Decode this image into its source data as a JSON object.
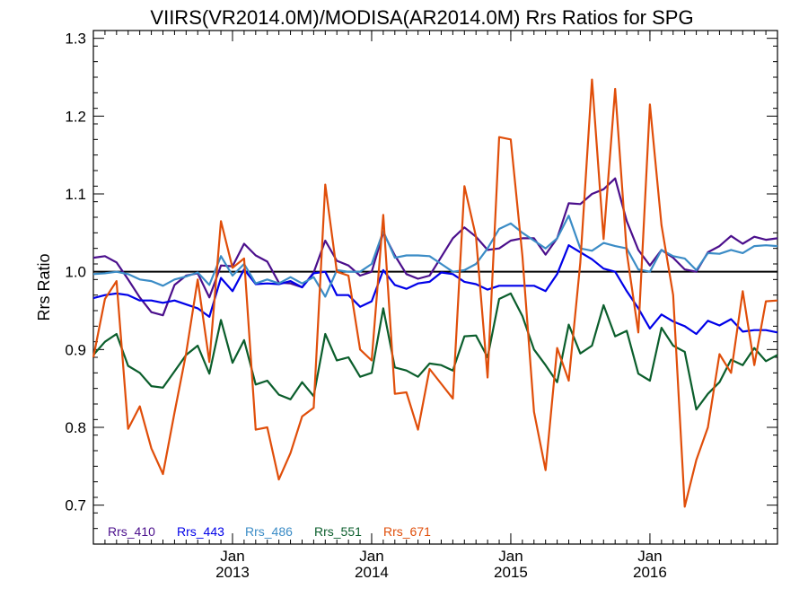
{
  "chart_data": {
    "type": "line",
    "title": "VIIRS(VR2014.0M)/MODISA(AR2014.0M)  Rrs Ratios for SPG",
    "xlabel": "",
    "ylabel": "Rrs Ratio",
    "x_start": "2012-01",
    "x_step": "1 month",
    "xlim": [
      "2012-01",
      "2016-12"
    ],
    "ylim": [
      0.65,
      1.31
    ],
    "y_ticks": [
      0.7,
      0.8,
      0.9,
      1.0,
      1.1,
      1.2,
      1.3
    ],
    "y_tick_labels": [
      "0.7",
      "0.8",
      "0.9",
      "1.0",
      "1.1",
      "1.2",
      "1.3"
    ],
    "x_ticks": [
      {
        "x": "2013-01",
        "month": "Jan",
        "year": "2013"
      },
      {
        "x": "2014-01",
        "month": "Jan",
        "year": "2014"
      },
      {
        "x": "2015-01",
        "month": "Jan",
        "year": "2015"
      },
      {
        "x": "2016-01",
        "month": "Jan",
        "year": "2016"
      }
    ],
    "reference_line": 1.0,
    "grid": false,
    "legend_placement": "bottom-left",
    "series": [
      {
        "name": "Rrs_410",
        "color": "#4b0f8c",
        "values": [
          1.018,
          1.02,
          1.012,
          0.99,
          0.967,
          0.948,
          0.944,
          0.983,
          0.995,
          0.998,
          0.967,
          1.008,
          1.007,
          1.036,
          1.021,
          1.013,
          0.986,
          0.985,
          0.98,
          0.999,
          1.04,
          1.014,
          1.008,
          0.995,
          1.0,
          1.05,
          1.021,
          0.997,
          0.991,
          0.995,
          1.019,
          1.043,
          1.057,
          1.045,
          1.028,
          1.03,
          1.04,
          1.043,
          1.043,
          1.022,
          1.043,
          1.088,
          1.087,
          1.1,
          1.106,
          1.12,
          1.065,
          1.028,
          1.008,
          1.028,
          1.018,
          1.003,
          1.0,
          1.025,
          1.033,
          1.046,
          1.036,
          1.045,
          1.041,
          1.043
        ]
      },
      {
        "name": "Rrs_443",
        "color": "#0000e8",
        "values": [
          0.966,
          0.97,
          0.972,
          0.97,
          0.963,
          0.963,
          0.96,
          0.963,
          0.958,
          0.953,
          0.942,
          0.992,
          0.975,
          1.003,
          0.984,
          0.985,
          0.984,
          0.988,
          0.98,
          0.998,
          1.0,
          0.97,
          0.97,
          0.955,
          0.962,
          1.002,
          0.983,
          0.978,
          0.985,
          0.987,
          0.999,
          0.997,
          0.987,
          0.984,
          0.977,
          0.982,
          0.982,
          0.982,
          0.982,
          0.975,
          0.997,
          1.034,
          1.025,
          1.016,
          1.004,
          1.0,
          0.975,
          0.953,
          0.927,
          0.945,
          0.936,
          0.93,
          0.92,
          0.937,
          0.931,
          0.939,
          0.923,
          0.925,
          0.925,
          0.922
        ]
      },
      {
        "name": "Rrs_486",
        "color": "#3b8cc6",
        "values": [
          0.997,
          0.998,
          1.0,
          0.997,
          0.99,
          0.988,
          0.982,
          0.99,
          0.994,
          0.999,
          0.983,
          1.02,
          0.995,
          1.01,
          0.985,
          0.99,
          0.985,
          0.993,
          0.985,
          0.993,
          0.968,
          1.002,
          1.0,
          1.0,
          1.01,
          1.052,
          1.018,
          1.021,
          1.021,
          1.02,
          1.01,
          1.0,
          1.002,
          1.01,
          1.03,
          1.055,
          1.062,
          1.05,
          1.04,
          1.03,
          1.043,
          1.072,
          1.03,
          1.027,
          1.037,
          1.033,
          1.03,
          1.003,
          1.0,
          1.028,
          1.02,
          1.017,
          1.002,
          1.024,
          1.023,
          1.028,
          1.024,
          1.033,
          1.034,
          1.033
        ]
      },
      {
        "name": "Rrs_551",
        "color": "#0b5e2c",
        "values": [
          0.893,
          0.91,
          0.92,
          0.879,
          0.87,
          0.853,
          0.851,
          0.872,
          0.893,
          0.905,
          0.869,
          0.938,
          0.883,
          0.912,
          0.855,
          0.86,
          0.842,
          0.836,
          0.858,
          0.84,
          0.92,
          0.886,
          0.89,
          0.865,
          0.87,
          0.953,
          0.877,
          0.873,
          0.865,
          0.882,
          0.88,
          0.873,
          0.917,
          0.918,
          0.89,
          0.965,
          0.972,
          0.943,
          0.9,
          0.88,
          0.858,
          0.932,
          0.895,
          0.905,
          0.957,
          0.917,
          0.924,
          0.869,
          0.86,
          0.928,
          0.905,
          0.897,
          0.823,
          0.843,
          0.858,
          0.887,
          0.88,
          0.902,
          0.885,
          0.893
        ]
      },
      {
        "name": "Rrs_671",
        "color": "#e04e0a",
        "values": [
          0.89,
          0.965,
          0.988,
          0.798,
          0.827,
          0.773,
          0.74,
          0.819,
          0.895,
          0.99,
          0.884,
          1.065,
          1.005,
          1.017,
          0.797,
          0.8,
          0.733,
          0.767,
          0.814,
          0.825,
          1.112,
          1.0,
          0.995,
          0.9,
          0.886,
          1.073,
          0.843,
          0.845,
          0.797,
          0.875,
          0.856,
          0.837,
          1.11,
          1.045,
          0.864,
          1.173,
          1.17,
          1.02,
          0.82,
          0.745,
          0.902,
          0.86,
          1.012,
          1.247,
          1.042,
          1.235,
          1.025,
          0.922,
          1.215,
          1.06,
          0.97,
          0.698,
          0.758,
          0.8,
          0.894,
          0.87,
          0.975,
          0.88,
          0.962,
          0.963
        ]
      }
    ]
  }
}
